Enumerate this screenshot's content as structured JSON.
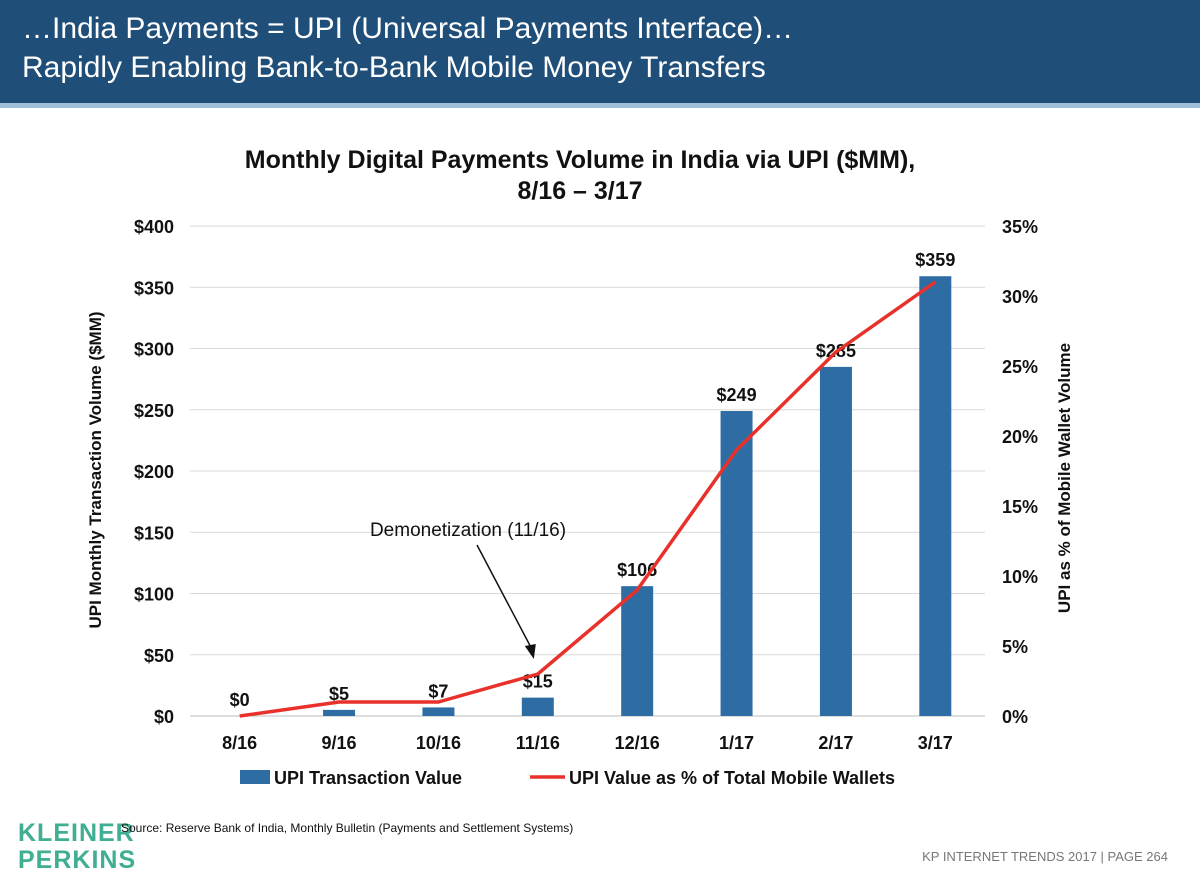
{
  "header": {
    "line1": "…India Payments = UPI (Universal Payments Interface)…",
    "line2": "Rapidly Enabling Bank-to-Bank Mobile Money Transfers"
  },
  "logo": {
    "line1": "KLEINER",
    "line2": "PERKINS"
  },
  "source": "Source: Reserve Bank of India, Monthly Bulletin (Payments and Settlement Systems)",
  "footer": "KP INTERNET TRENDS 2017   |   PAGE 264",
  "colors": {
    "header_bg": "#1f4e79",
    "bar": "#2e6da4",
    "line": "#e8312a",
    "logo": "#3fae92"
  },
  "chart_data": {
    "type": "bar",
    "title": "Monthly Digital Payments Volume in India via UPI ($MM),",
    "subtitle": "8/16 – 3/17",
    "categories": [
      "8/16",
      "9/16",
      "10/16",
      "11/16",
      "12/16",
      "1/17",
      "2/17",
      "3/17"
    ],
    "series": [
      {
        "name": "UPI Transaction Value",
        "type": "bar",
        "axis": "left",
        "values": [
          0,
          5,
          7,
          15,
          106,
          249,
          285,
          359
        ],
        "labels": [
          "$0",
          "$5",
          "$7",
          "$15",
          "$106",
          "$249",
          "$285",
          "$359"
        ]
      },
      {
        "name": "UPI Value as % of Total Mobile Wallets",
        "type": "line",
        "axis": "right",
        "values": [
          0,
          1.0,
          1.0,
          3.0,
          9.0,
          19.0,
          26.0,
          31.0
        ]
      }
    ],
    "ylabel": "UPI Monthly Transaction Volume ($MM)",
    "ylabel_right": "UPI as % of Mobile Wallet Volume",
    "ylim": [
      0,
      400
    ],
    "ylim_right": [
      0,
      35
    ],
    "yticks": [
      0,
      50,
      100,
      150,
      200,
      250,
      300,
      350,
      400
    ],
    "ytick_labels": [
      "$0",
      "$50",
      "$100",
      "$150",
      "$200",
      "$250",
      "$300",
      "$350",
      "$400"
    ],
    "yticks_right": [
      0,
      5,
      10,
      15,
      20,
      25,
      30,
      35
    ],
    "ytick_labels_right": [
      "0%",
      "5%",
      "10%",
      "15%",
      "20%",
      "25%",
      "30%",
      "35%"
    ],
    "grid": true,
    "legend": "bottom",
    "annotation": {
      "text": "Demonetization (11/16)",
      "category": "11/16"
    }
  }
}
